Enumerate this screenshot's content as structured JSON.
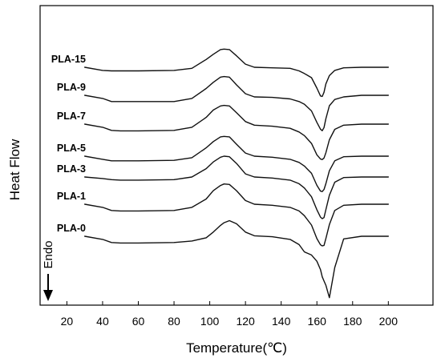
{
  "chart_data": {
    "type": "line",
    "title": "",
    "xlabel": "Temperature(℃)",
    "ylabel": "Heat Flow",
    "xlim": [
      5,
      225
    ],
    "xticks": [
      20,
      40,
      60,
      80,
      100,
      120,
      140,
      160,
      180,
      200
    ],
    "y_units": "arbitrary (curves vertically offset)",
    "grid": false,
    "legend": "none (series labelled directly left of each curve)",
    "annotation": "Endo",
    "annotation_arrow": "down",
    "x": [
      30,
      40,
      45,
      50,
      60,
      80,
      90,
      98,
      102,
      106,
      108,
      111,
      115,
      120,
      125,
      135,
      145,
      150,
      153,
      157,
      160,
      162,
      163,
      164,
      165,
      167,
      170,
      175,
      185,
      200
    ],
    "series": [
      {
        "name": "PLA-15",
        "values": [
          0.0,
          -0.6,
          -0.7,
          -0.7,
          -0.7,
          -0.6,
          -0.2,
          1.5,
          2.5,
          3.4,
          3.5,
          3.4,
          2.2,
          0.6,
          0.0,
          -0.1,
          -0.2,
          -0.7,
          -1.2,
          -2.0,
          -4.0,
          -5.5,
          -5.6,
          -4.8,
          -3.2,
          -1.6,
          -0.6,
          -0.1,
          0.0,
          0.0
        ]
      },
      {
        "name": "PLA-9",
        "values": [
          0.0,
          -0.6,
          -1.2,
          -1.2,
          -1.2,
          -1.2,
          -0.6,
          1.3,
          2.5,
          3.5,
          3.6,
          3.5,
          2.0,
          0.3,
          -0.3,
          -0.4,
          -0.7,
          -1.2,
          -1.7,
          -3.0,
          -5.2,
          -6.5,
          -6.8,
          -6.2,
          -4.5,
          -2.0,
          -0.8,
          -0.3,
          0.0,
          0.0
        ]
      },
      {
        "name": "PLA-7",
        "values": [
          0.0,
          -0.6,
          -1.2,
          -1.3,
          -1.3,
          -1.2,
          -0.6,
          1.3,
          2.7,
          3.5,
          3.6,
          3.5,
          2.2,
          0.5,
          -0.2,
          -0.4,
          -0.8,
          -1.5,
          -2.2,
          -3.7,
          -5.9,
          -6.7,
          -6.8,
          -6.5,
          -5.5,
          -3.0,
          -1.0,
          -0.2,
          0.0,
          0.0
        ]
      },
      {
        "name": "PLA-5",
        "values": [
          0.0,
          -0.6,
          -0.9,
          -0.9,
          -0.9,
          -0.8,
          -0.3,
          1.6,
          2.8,
          3.7,
          3.8,
          3.7,
          2.3,
          0.6,
          0.0,
          -0.2,
          -0.6,
          -1.2,
          -1.9,
          -3.3,
          -5.6,
          -6.7,
          -6.8,
          -6.4,
          -5.3,
          -2.8,
          -0.9,
          -0.1,
          0.0,
          0.0
        ]
      },
      {
        "name": "PLA-3",
        "values": [
          0.0,
          -0.3,
          -0.5,
          -0.6,
          -0.6,
          -0.5,
          0.0,
          1.6,
          2.9,
          3.8,
          4.0,
          3.9,
          2.6,
          0.6,
          0.0,
          -0.2,
          -0.6,
          -1.3,
          -2.1,
          -3.8,
          -6.3,
          -7.7,
          -8.0,
          -7.8,
          -6.3,
          -3.5,
          -1.0,
          -0.1,
          0.0,
          0.0
        ]
      },
      {
        "name": "PLA-1",
        "values": [
          0.0,
          -0.6,
          -1.2,
          -1.3,
          -1.3,
          -1.2,
          -0.6,
          1.0,
          2.6,
          3.6,
          3.9,
          3.8,
          2.6,
          0.7,
          0.0,
          -0.2,
          -0.6,
          -1.3,
          -2.2,
          -4.0,
          -6.6,
          -7.8,
          -8.0,
          -7.9,
          -6.6,
          -3.9,
          -1.2,
          -0.2,
          0.0,
          0.0
        ]
      },
      {
        "name": "PLA-0",
        "values": [
          0.0,
          -0.6,
          -1.2,
          -1.3,
          -1.3,
          -1.2,
          -0.9,
          -0.3,
          0.8,
          2.1,
          2.6,
          3.0,
          2.4,
          0.8,
          0.1,
          -0.1,
          -0.6,
          -1.6,
          -3.0,
          -3.6,
          -4.8,
          -6.4,
          -7.8,
          -8.6,
          -9.4,
          -11.8,
          -6.0,
          -0.5,
          0.0,
          0.0
        ]
      }
    ]
  }
}
